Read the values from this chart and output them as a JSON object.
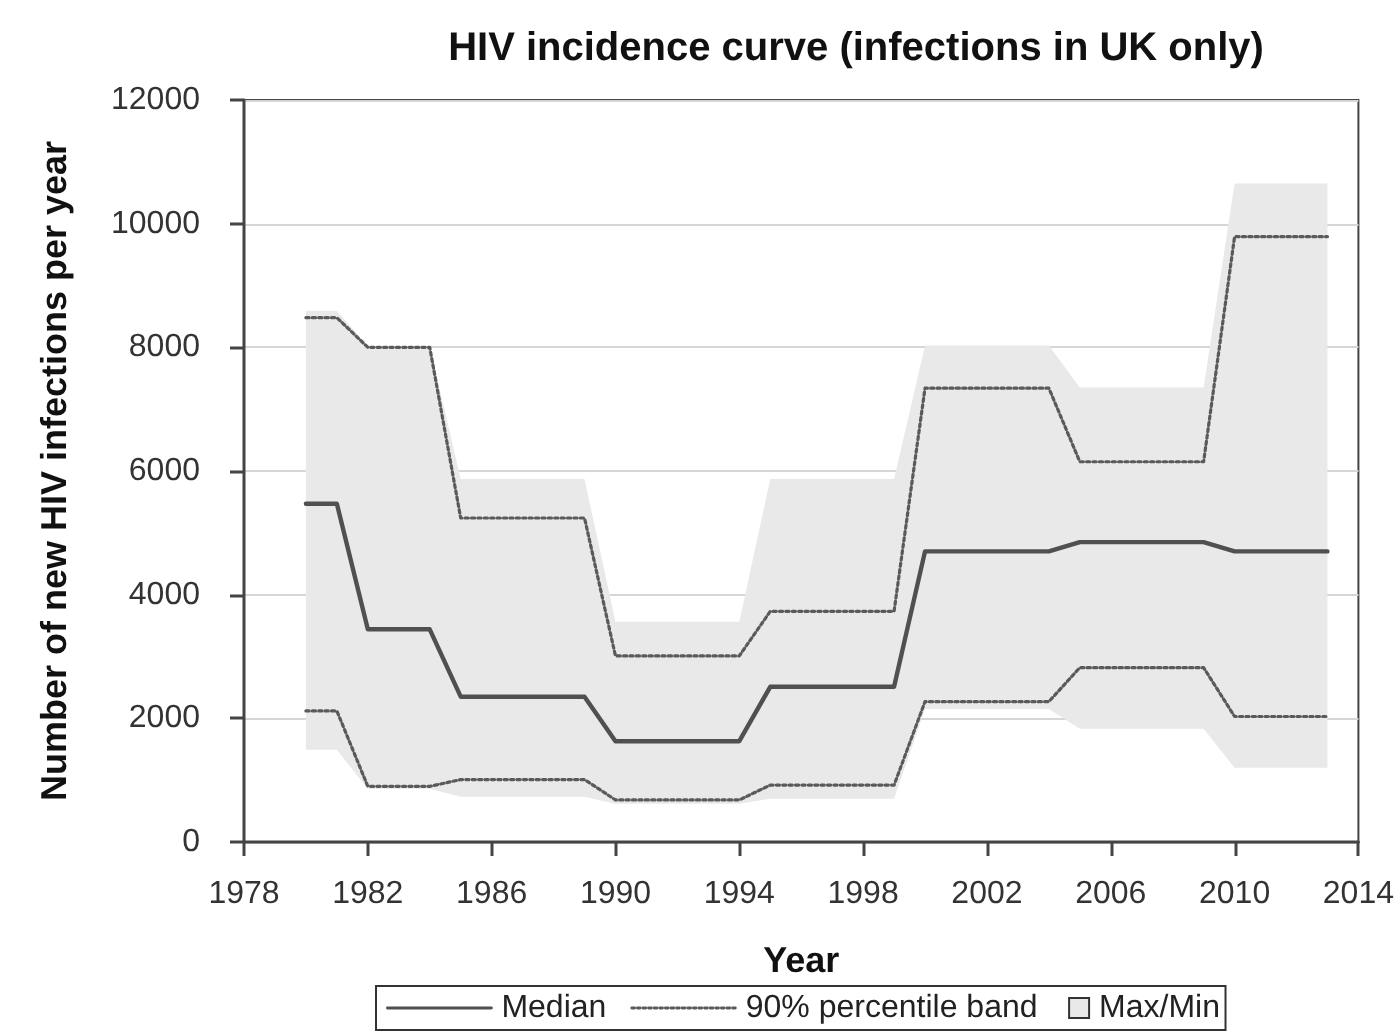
{
  "chart_data": {
    "type": "line",
    "title": "HIV incidence curve (infections in UK only)",
    "xlabel": "Year",
    "ylabel": "Number of new HIV infections per year",
    "x": [
      1980,
      1981,
      1982,
      1983,
      1984,
      1985,
      1986,
      1987,
      1988,
      1989,
      1990,
      1991,
      1992,
      1993,
      1994,
      1995,
      1996,
      1997,
      1998,
      1999,
      2000,
      2001,
      2002,
      2003,
      2004,
      2005,
      2006,
      2007,
      2008,
      2009,
      2010,
      2011,
      2012,
      2013
    ],
    "series": [
      {
        "name": "Median",
        "color": "#505050",
        "line_style": "solid",
        "values": [
          5470,
          5470,
          3440,
          3440,
          3440,
          2350,
          2350,
          2350,
          2350,
          2350,
          1630,
          1630,
          1630,
          1630,
          1630,
          2510,
          2510,
          2510,
          2510,
          2510,
          4700,
          4700,
          4700,
          4700,
          4700,
          4850,
          4850,
          4850,
          4850,
          4850,
          4700,
          4700,
          4700,
          4700
        ]
      },
      {
        "name": "90% percentile band",
        "color": "#5a5a5a",
        "line_style": "dotted",
        "values": [
          8480,
          8480,
          8000,
          8000,
          8000,
          5240,
          5240,
          5240,
          5240,
          5240,
          3010,
          3010,
          3010,
          3010,
          3010,
          3730,
          3730,
          3730,
          3730,
          3730,
          7340,
          7340,
          7340,
          7340,
          7340,
          6150,
          6150,
          6150,
          6150,
          6150,
          9790,
          9790,
          9790,
          9790
        ]
      },
      {
        "color": "#5a5a5a",
        "line_style": "dotted",
        "values": [
          2120,
          2120,
          900,
          900,
          900,
          1010,
          1010,
          1010,
          1010,
          1010,
          680,
          680,
          680,
          680,
          680,
          920,
          920,
          920,
          920,
          920,
          2270,
          2270,
          2270,
          2270,
          2270,
          2820,
          2820,
          2820,
          2820,
          2820,
          2030,
          2030,
          2030,
          2030
        ]
      },
      {
        "name": "Max/Min",
        "type": "area",
        "color": "#e9e9e9",
        "values": [
          null,
          null,
          null,
          null,
          null,
          null,
          null,
          null,
          null,
          null,
          null,
          null,
          null,
          null,
          null,
          null,
          null,
          null,
          null,
          null,
          null,
          null,
          null,
          null,
          null,
          null,
          null,
          null,
          null,
          null,
          null,
          null,
          null,
          null
        ],
        "upper": [
          8590,
          8590,
          8020,
          8020,
          8020,
          5870,
          5870,
          5870,
          5870,
          5870,
          3560,
          3560,
          3560,
          3560,
          3560,
          5870,
          5870,
          5870,
          5870,
          5870,
          8030,
          8030,
          8030,
          8030,
          8030,
          7350,
          7350,
          7350,
          7350,
          7350,
          10650,
          10650,
          10650,
          10650
        ],
        "lower": [
          1490,
          1490,
          860,
          860,
          860,
          730,
          730,
          730,
          730,
          730,
          620,
          620,
          620,
          620,
          620,
          700,
          700,
          700,
          700,
          700,
          2150,
          2150,
          2150,
          2150,
          2150,
          1830,
          1830,
          1830,
          1830,
          1830,
          1200,
          1200,
          1200,
          1200
        ]
      }
    ],
    "xlim": [
      1978,
      2014
    ],
    "xticks": [
      1978,
      1982,
      1986,
      1990,
      1994,
      1998,
      2002,
      2006,
      2010,
      2014
    ],
    "ylim": [
      0,
      12000
    ],
    "yticks": [
      0,
      2000,
      4000,
      6000,
      8000,
      10000,
      12000
    ],
    "grid": "y",
    "legend": "bottom",
    "marker": "none"
  }
}
